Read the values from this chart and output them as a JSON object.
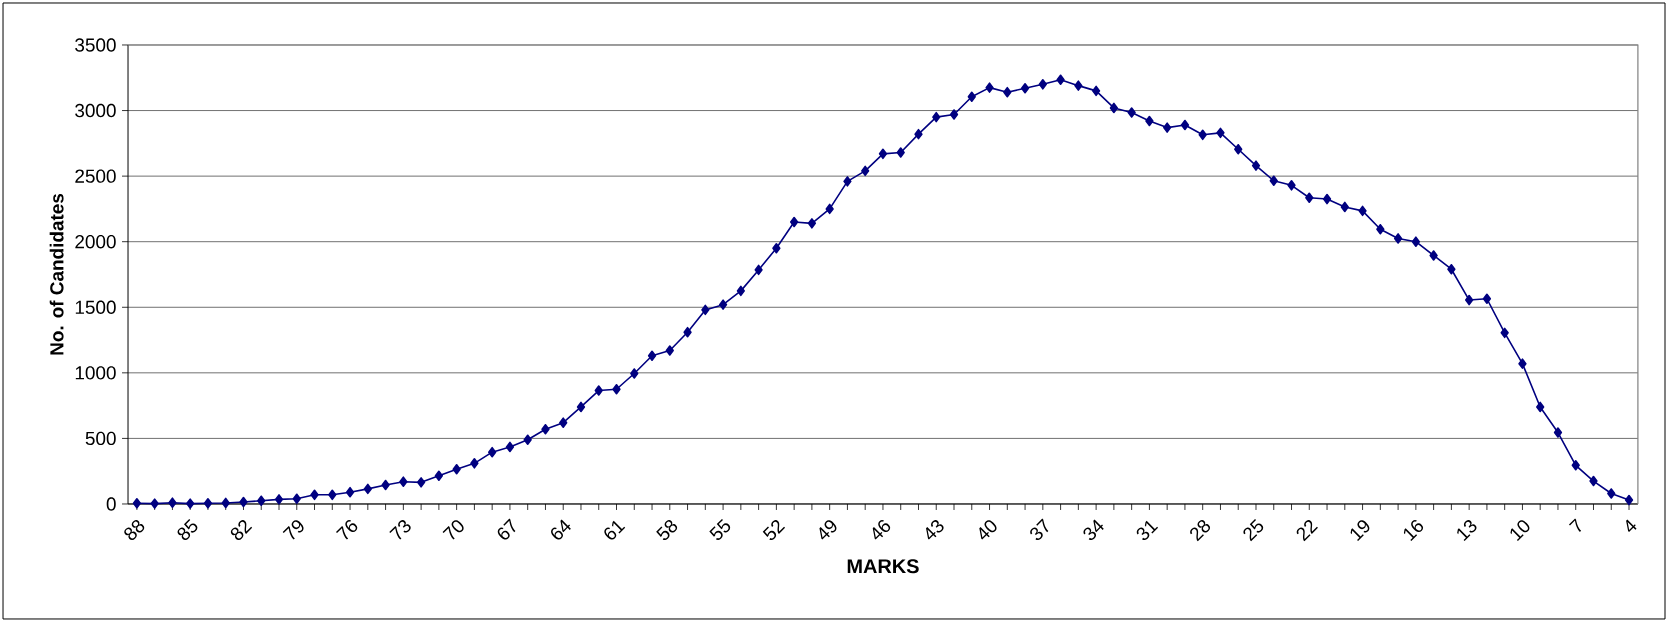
{
  "chart_data": {
    "type": "line",
    "xlabel": "MARKS",
    "ylabel": "No. of Candidates",
    "categories": [
      "88",
      null,
      null,
      "85",
      null,
      null,
      "82",
      null,
      null,
      "79",
      null,
      null,
      "76",
      null,
      null,
      "73",
      null,
      null,
      "70",
      null,
      null,
      "67",
      null,
      null,
      "64",
      null,
      null,
      "61",
      null,
      null,
      "58",
      null,
      null,
      "55",
      null,
      null,
      "52",
      null,
      null,
      "49",
      null,
      null,
      "46",
      null,
      null,
      "43",
      null,
      null,
      "40",
      null,
      null,
      "37",
      null,
      null,
      "34",
      null,
      null,
      "31",
      null,
      null,
      "28",
      null,
      null,
      "25",
      null,
      null,
      "22",
      null,
      null,
      "19",
      null,
      null,
      "16",
      null,
      null,
      "13",
      null,
      null,
      "10",
      null,
      null,
      "7",
      null,
      null,
      "4"
    ],
    "series": [
      {
        "color": "#000080",
        "values": [
          5,
          3,
          10,
          3,
          5,
          8,
          15,
          25,
          35,
          40,
          70,
          70,
          90,
          115,
          145,
          170,
          165,
          215,
          265,
          310,
          395,
          435,
          490,
          570,
          620,
          740,
          865,
          875,
          995,
          1130,
          1170,
          1310,
          1480,
          1520,
          1625,
          1785,
          1950,
          2150,
          2140,
          2250,
          2460,
          2540,
          2670,
          2680,
          2820,
          2950,
          2970,
          3105,
          3175,
          3140,
          3170,
          3200,
          3235,
          3190,
          3150,
          3020,
          2985,
          2920,
          2870,
          2890,
          2815,
          2830,
          2705,
          2580,
          2465,
          2430,
          2335,
          2325,
          2265,
          2235,
          2095,
          2025,
          2000,
          1895,
          1790,
          1555,
          1565,
          1305,
          1070,
          740,
          545,
          295,
          175,
          80,
          30
        ]
      }
    ],
    "ylim": [
      0,
      3500
    ],
    "yticks": [
      0,
      500,
      1000,
      1500,
      2000,
      2500,
      3000,
      3500
    ],
    "grid": "y",
    "marker": "diamond",
    "line_style": "solid"
  }
}
